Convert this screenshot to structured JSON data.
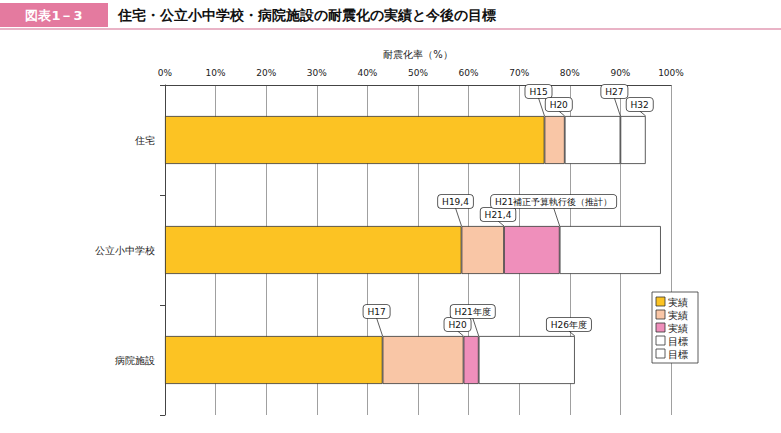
{
  "chart_data": {
    "type": "bar",
    "orientation": "horizontal",
    "stacked": true,
    "grid": true,
    "figure_label": "図表1－3",
    "title": "住宅・公立小中学校・病院施設の耐震化の実績と今後の目標",
    "x_label": "耐震化率（%）",
    "categories": [
      "住宅",
      "公立小中学校",
      "病院施設"
    ],
    "series": [
      {
        "name": "実績",
        "color": "#fcc323",
        "values": [
          75,
          58.6,
          43
        ]
      },
      {
        "name": "実績",
        "color": "#f9c6a6",
        "values": [
          4,
          8.4,
          16
        ]
      },
      {
        "name": "実績",
        "color": "#ef8fbb",
        "values": [
          null,
          11,
          3
        ]
      },
      {
        "name": "目標",
        "color": "#ffffff",
        "values": [
          11,
          20,
          19
        ]
      },
      {
        "name": "目標",
        "color": "#ffffff",
        "values": [
          5,
          null,
          null
        ]
      }
    ],
    "xlim": [
      0,
      100
    ],
    "xticks": [
      {
        "value": 0,
        "label": "0%"
      },
      {
        "value": 10,
        "label": "10%"
      },
      {
        "value": 20,
        "label": "20%"
      },
      {
        "value": 30,
        "label": "30%"
      },
      {
        "value": 40,
        "label": "40%"
      },
      {
        "value": 50,
        "label": "50%"
      },
      {
        "value": 60,
        "label": "60%"
      },
      {
        "value": 70,
        "label": "70%"
      },
      {
        "value": 80,
        "label": "80%"
      },
      {
        "value": 90,
        "label": "90%"
      },
      {
        "value": 100,
        "label": "100%"
      }
    ],
    "legend": "right",
    "annotations": [
      {
        "text": "H15",
        "category": "住宅",
        "value": 75
      },
      {
        "text": "H20",
        "category": "住宅",
        "value": 79
      },
      {
        "text": "H27",
        "category": "住宅",
        "value": 90
      },
      {
        "text": "H32",
        "category": "住宅",
        "value": 95
      },
      {
        "text": "H19,4",
        "category": "公立小中学校",
        "value": 58.6
      },
      {
        "text": "H21,4",
        "category": "公立小中学校",
        "value": 67
      },
      {
        "text": "H21補正予算執行後（推計）",
        "category": "公立小中学校",
        "value": 78
      },
      {
        "text": "H17",
        "category": "病院施設",
        "value": 43
      },
      {
        "text": "H20",
        "category": "病院施設",
        "value": 59
      },
      {
        "text": "H21年度",
        "category": "病院施設",
        "value": 62
      },
      {
        "text": "H26年度",
        "category": "病院施設",
        "value": 81
      }
    ]
  }
}
